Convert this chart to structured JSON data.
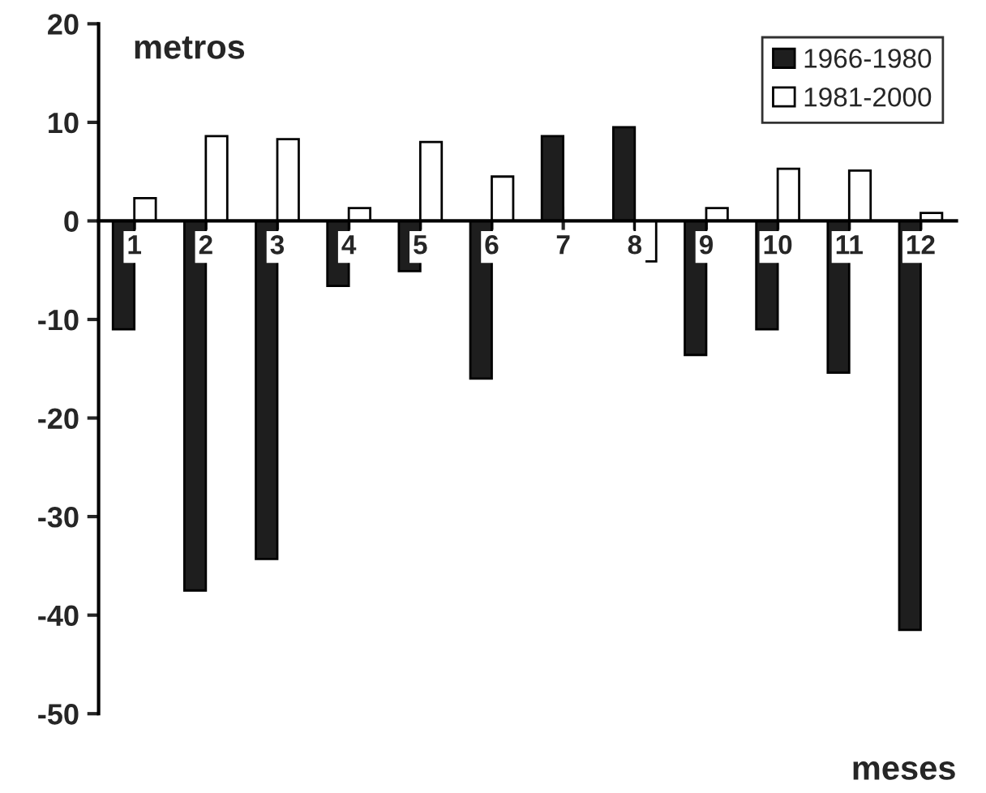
{
  "chart_data": {
    "type": "bar",
    "ylabel": "metros",
    "xlabel": "meses",
    "categories": [
      "1",
      "2",
      "3",
      "4",
      "5",
      "6",
      "7",
      "8",
      "9",
      "10",
      "11",
      "12"
    ],
    "series": [
      {
        "name": "1966-1980",
        "color": "#1e1e1e",
        "values": [
          -11,
          -37.5,
          -34.3,
          -6.6,
          -5.1,
          -16,
          8.6,
          9.5,
          -13.6,
          -11,
          -15.4,
          -41.5
        ]
      },
      {
        "name": "1981-2000",
        "color": "#ffffff",
        "values": [
          2.3,
          8.6,
          8.3,
          1.3,
          8,
          4.5,
          null,
          -4.1,
          1.3,
          5.3,
          5.1,
          0.8
        ]
      }
    ],
    "ylim": [
      -50,
      20
    ],
    "yticks": [
      {
        "value": -50,
        "label": "-50"
      },
      {
        "value": -40,
        "label": "-40"
      },
      {
        "value": -30,
        "label": "-30"
      },
      {
        "value": -20,
        "label": "-20"
      },
      {
        "value": -10,
        "label": "-10"
      },
      0,
      10,
      20
    ],
    "grid": false,
    "legend": "top right"
  }
}
